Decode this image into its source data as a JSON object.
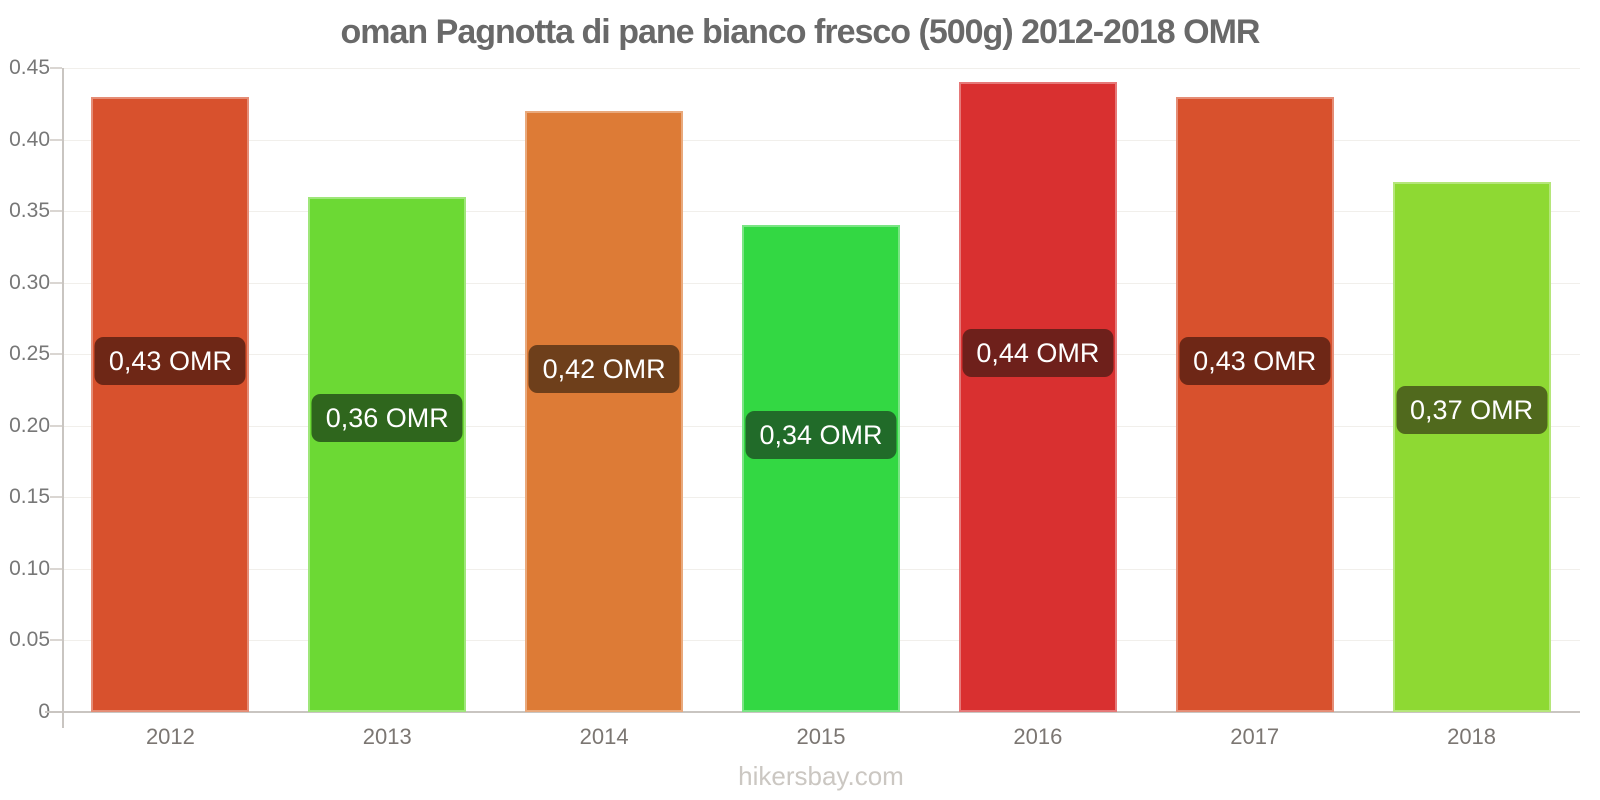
{
  "title": "oman Pagnotta di pane bianco fresco (500g) 2012-2018 OMR",
  "watermark": "hikersbay.com",
  "chart_data": {
    "type": "bar",
    "title": "oman Pagnotta di pane bianco fresco (500g) 2012-2018 OMR",
    "categories": [
      "2012",
      "2013",
      "2014",
      "2015",
      "2016",
      "2017",
      "2018"
    ],
    "values": [
      0.43,
      0.36,
      0.42,
      0.34,
      0.44,
      0.43,
      0.37
    ],
    "bar_value_labels": [
      "0,43 OMR",
      "0,36 OMR",
      "0,42 OMR",
      "0,34 OMR",
      "0,44 OMR",
      "0,43 OMR",
      "0,37 OMR"
    ],
    "bar_colors": [
      "#d8512d",
      "#6cd934",
      "#dd7b36",
      "#33d843",
      "#d93030",
      "#d8512d",
      "#8ed933"
    ],
    "label_bg_colors": [
      "#6e2716",
      "#2f661d",
      "#6e3f1b",
      "#216b29",
      "#6e201b",
      "#6e2716",
      "#50691d"
    ],
    "xlabel": "",
    "ylabel": "",
    "ylim": [
      0,
      0.45
    ],
    "yticks": [
      "0",
      "0.05",
      "0.10",
      "0.15",
      "0.20",
      "0.25",
      "0.30",
      "0.35",
      "0.40",
      "0.45"
    ],
    "grid": true,
    "legend": false,
    "currency": "OMR"
  }
}
